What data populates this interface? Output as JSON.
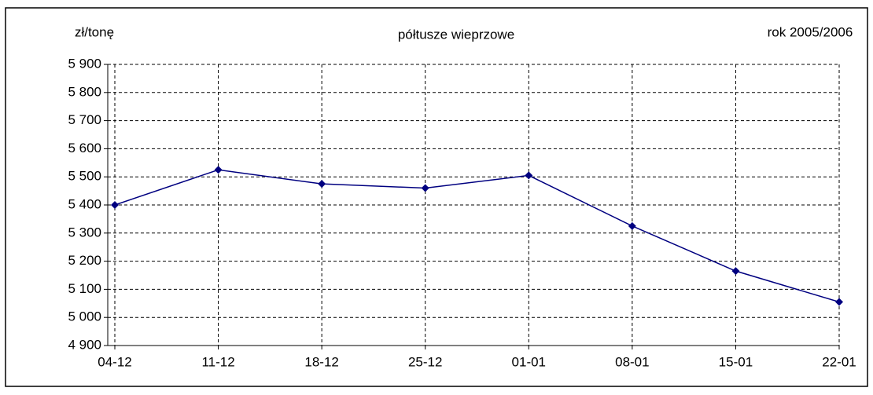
{
  "chart_data": {
    "type": "line",
    "title": "półtusze wieprzowe",
    "y_label": "zł/tonę",
    "annotation": "rok 2005/2006",
    "categories": [
      "04-12",
      "11-12",
      "18-12",
      "25-12",
      "01-01",
      "08-01",
      "15-01",
      "22-01"
    ],
    "series": [
      {
        "name": "półtusze wieprzowe",
        "color": "#000080",
        "values": [
          5400,
          5525,
          5475,
          5460,
          5505,
          5325,
          5165,
          5055
        ]
      }
    ],
    "ylim": [
      4900,
      5900
    ],
    "yticks": [
      {
        "value": 4900,
        "label": "4 900"
      },
      {
        "value": 5000,
        "label": "5 000"
      },
      {
        "value": 5100,
        "label": "5 100"
      },
      {
        "value": 5200,
        "label": "5 200"
      },
      {
        "value": 5300,
        "label": "5 300"
      },
      {
        "value": 5400,
        "label": "5 400"
      },
      {
        "value": 5500,
        "label": "5 500"
      },
      {
        "value": 5600,
        "label": "5 600"
      },
      {
        "value": 5700,
        "label": "5 700"
      },
      {
        "value": 5800,
        "label": "5 800"
      },
      {
        "value": 5900,
        "label": "5 900"
      }
    ],
    "grid": true
  }
}
